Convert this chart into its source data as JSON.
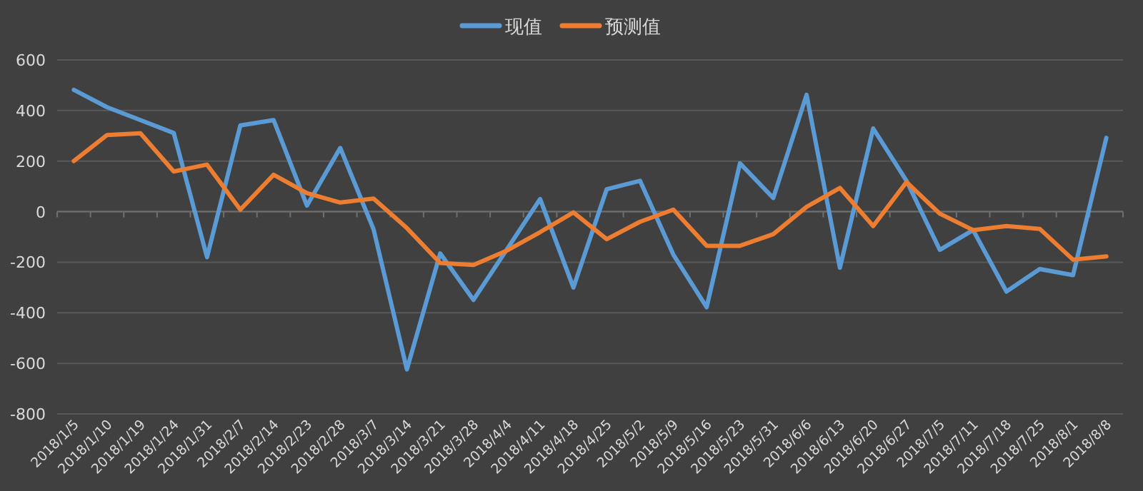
{
  "chart_data": {
    "type": "line",
    "categories": [
      "2018/1/5",
      "2018/1/10",
      "2018/1/19",
      "2018/1/24",
      "2018/1/31",
      "2018/2/7",
      "2018/2/14",
      "2018/2/23",
      "2018/2/28",
      "2018/3/7",
      "2018/3/14",
      "2018/3/21",
      "2018/3/28",
      "2018/4/4",
      "2018/4/11",
      "2018/4/18",
      "2018/4/25",
      "2018/5/2",
      "2018/5/9",
      "2018/5/16",
      "2018/5/23",
      "2018/5/31",
      "2018/6/6",
      "2018/6/13",
      "2018/6/20",
      "2018/6/27",
      "2018/7/5",
      "2018/7/11",
      "2018/7/18",
      "2018/7/25",
      "2018/8/1",
      "2018/8/8"
    ],
    "series": [
      {
        "name": "现值",
        "color": "#5b9bd5",
        "values": [
          482,
          413,
          362,
          311,
          -180,
          341,
          362,
          24,
          252,
          -70,
          -624,
          -165,
          -349,
          -150,
          50,
          -300,
          89,
          122,
          -170,
          -378,
          191,
          54,
          462,
          -222,
          329,
          122,
          -151,
          -73,
          -316,
          -227,
          -251,
          292
        ]
      },
      {
        "name": "预测值",
        "color": "#ed7d31",
        "values": [
          200,
          303,
          310,
          159,
          186,
          8,
          146,
          73,
          36,
          52,
          -65,
          -203,
          -211,
          -154,
          -81,
          -3,
          -109,
          -40,
          8,
          -135,
          -135,
          -89,
          19,
          94,
          -57,
          117,
          -8,
          -73,
          -57,
          -68,
          -190,
          -177
        ]
      }
    ],
    "ylim": [
      -800,
      600
    ],
    "yticks": [
      -800,
      -600,
      -400,
      -200,
      0,
      200,
      400,
      600
    ],
    "grid": "y",
    "legend": "top",
    "marker": "none",
    "line_style": "solid"
  }
}
